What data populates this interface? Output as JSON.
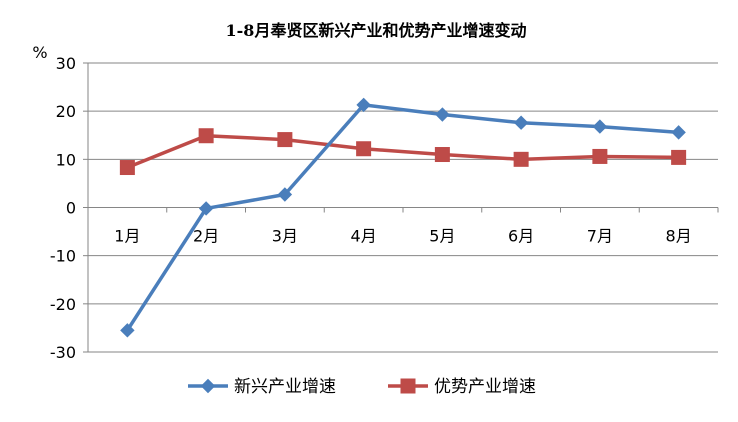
{
  "chart_data": {
    "type": "line",
    "title": "1-8月奉贤区新兴产业和优势产业增速变动",
    "ylabel": "%",
    "xlabel": "",
    "categories": [
      "1月",
      "2月",
      "3月",
      "4月",
      "5月",
      "6月",
      "7月",
      "8月"
    ],
    "ylim": [
      -30,
      30
    ],
    "yticks": [
      30,
      20,
      10,
      0,
      -10,
      -20,
      -30
    ],
    "ytick_labels": [
      "30",
      "20",
      "10",
      "0",
      "-10",
      "-20",
      "-30"
    ],
    "grid": true,
    "legend_position": "bottom",
    "series": [
      {
        "name": "新兴产业增速",
        "values": [
          -25.5,
          -0.2,
          2.7,
          21.3,
          19.3,
          17.6,
          16.8,
          15.6
        ],
        "color": "#4a7ebb",
        "marker": "diamond"
      },
      {
        "name": "优势产业增速",
        "values": [
          8.3,
          14.9,
          14.1,
          12.2,
          11.0,
          10.0,
          10.6,
          10.4
        ],
        "color": "#be4b48",
        "marker": "square"
      }
    ]
  }
}
